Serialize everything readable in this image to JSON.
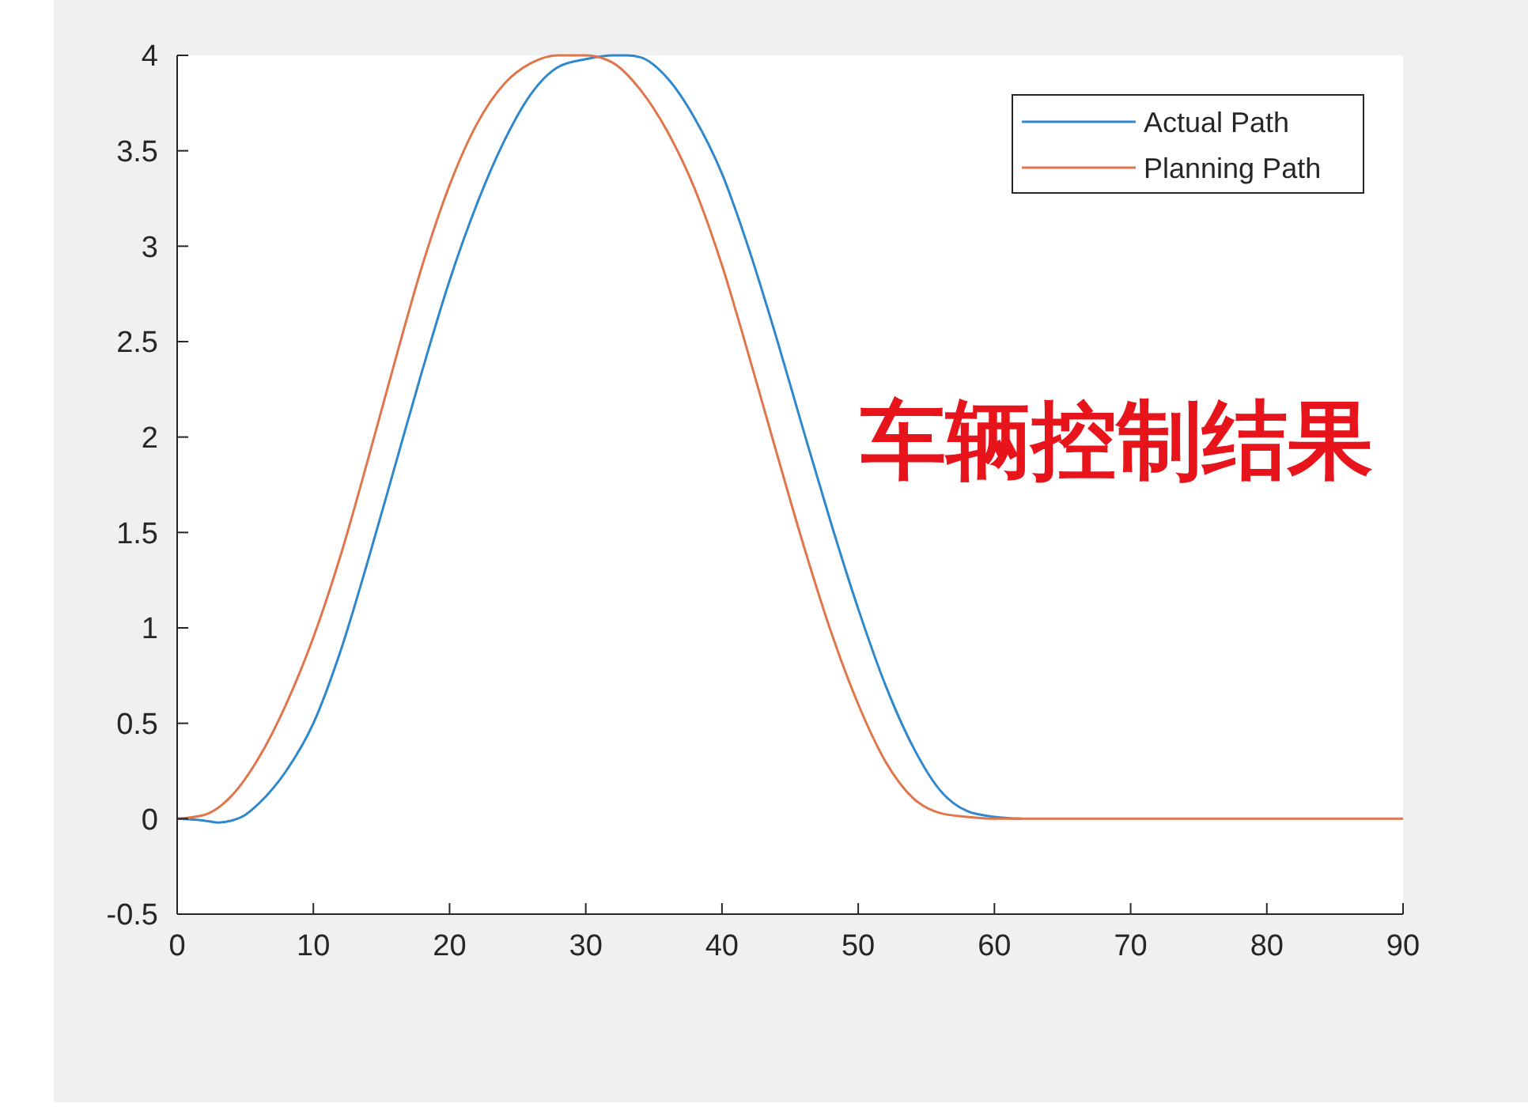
{
  "chart_data": {
    "type": "line",
    "annotations": [
      "车辆控制结果"
    ],
    "xlim": [
      0,
      90
    ],
    "ylim": [
      -0.5,
      4
    ],
    "xticks": [
      0,
      10,
      20,
      30,
      40,
      50,
      60,
      70,
      80,
      90
    ],
    "yticks": [
      -0.5,
      0,
      0.5,
      1,
      1.5,
      2,
      2.5,
      3,
      3.5,
      4
    ],
    "grid": false,
    "legend": "top right",
    "marker": "none",
    "line_style": "solid",
    "series": [
      {
        "name": "Actual Path",
        "color": "#2f88cc",
        "x": [
          0,
          2,
          3,
          4,
          5,
          6,
          8,
          10,
          12,
          14,
          16,
          18,
          20,
          22,
          24,
          26,
          28,
          30,
          32,
          33,
          34,
          36,
          38,
          40,
          42,
          44,
          46,
          48,
          50,
          52,
          54,
          56,
          58,
          60,
          62
        ],
        "values": [
          0,
          -0.01,
          -0.02,
          -0.01,
          0.02,
          0.08,
          0.25,
          0.5,
          0.88,
          1.35,
          1.85,
          2.35,
          2.82,
          3.22,
          3.55,
          3.8,
          3.94,
          3.98,
          4.0,
          4.0,
          3.99,
          3.88,
          3.67,
          3.38,
          2.98,
          2.52,
          2.03,
          1.55,
          1.1,
          0.7,
          0.38,
          0.15,
          0.04,
          0.01,
          0
        ]
      },
      {
        "name": "Planning Path",
        "color": "#e0764c",
        "x": [
          0,
          2,
          4,
          6,
          8,
          10,
          12,
          14,
          16,
          18,
          20,
          22,
          24,
          26,
          28,
          30,
          32,
          34,
          36,
          38,
          40,
          42,
          44,
          46,
          48,
          50,
          52,
          54,
          56,
          58,
          60,
          70,
          80,
          90
        ],
        "values": [
          0,
          0.02,
          0.12,
          0.32,
          0.6,
          0.95,
          1.38,
          1.88,
          2.4,
          2.9,
          3.32,
          3.64,
          3.85,
          3.96,
          4.0,
          4.0,
          3.96,
          3.82,
          3.6,
          3.3,
          2.9,
          2.42,
          1.92,
          1.43,
          0.98,
          0.6,
          0.3,
          0.11,
          0.03,
          0.01,
          0,
          0,
          0,
          0
        ]
      }
    ]
  }
}
